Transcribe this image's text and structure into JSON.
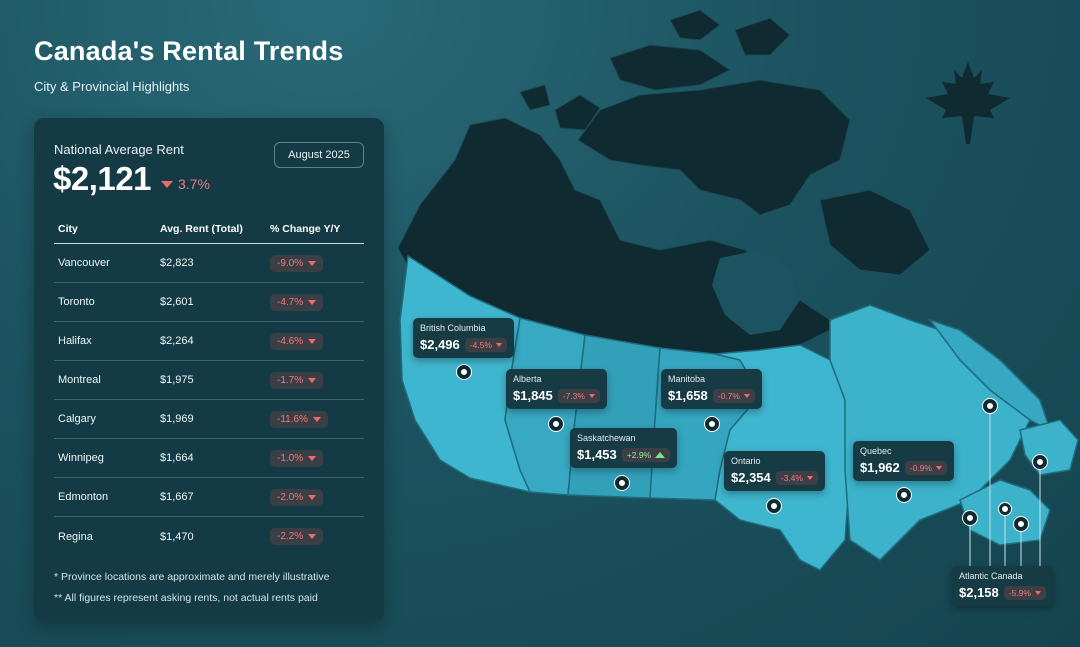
{
  "header": {
    "title": "Canada's Rental Trends",
    "subtitle": "City & Provincial Highlights"
  },
  "national": {
    "label": "National Average Rent",
    "value": "$2,121",
    "change": "3.7%",
    "direction": "down",
    "date": "August 2025"
  },
  "table": {
    "headers": [
      "City",
      "Avg. Rent (Total)",
      "% Change Y/Y"
    ],
    "rows": [
      {
        "city": "Vancouver",
        "rent": "$2,823",
        "change": "-9.0%"
      },
      {
        "city": "Toronto",
        "rent": "$2,601",
        "change": "-4.7%"
      },
      {
        "city": "Halifax",
        "rent": "$2,264",
        "change": "-4.6%"
      },
      {
        "city": "Montreal",
        "rent": "$1,975",
        "change": "-1.7%"
      },
      {
        "city": "Calgary",
        "rent": "$1,969",
        "change": "-11.6%"
      },
      {
        "city": "Winnipeg",
        "rent": "$1,664",
        "change": "-1.0%"
      },
      {
        "city": "Edmonton",
        "rent": "$1,667",
        "change": "-2.0%"
      },
      {
        "city": "Regina",
        "rent": "$1,470",
        "change": "-2.2%"
      }
    ]
  },
  "notes": [
    "* Province locations are approximate and merely illustrative",
    "** All figures represent asking rents, not actual rents paid"
  ],
  "provinces": [
    {
      "name": "British Columbia",
      "value": "$2,496",
      "change": "-4.5%",
      "direction": "down"
    },
    {
      "name": "Alberta",
      "value": "$1,845",
      "change": "-7.3%",
      "direction": "down"
    },
    {
      "name": "Saskatchewan",
      "value": "$1,453",
      "change": "+2.9%",
      "direction": "up"
    },
    {
      "name": "Manitoba",
      "value": "$1,658",
      "change": "-0.7%",
      "direction": "down"
    },
    {
      "name": "Ontario",
      "value": "$2,354",
      "change": "-3.4%",
      "direction": "down"
    },
    {
      "name": "Quebec",
      "value": "$1,962",
      "change": "-0.9%",
      "direction": "down"
    },
    {
      "name": "Atlantic Canada",
      "value": "$2,158",
      "change": "-5.9%",
      "direction": "down"
    }
  ],
  "colors": {
    "background": "#1c5360",
    "panel": "#143b45",
    "north": "#0f2a31",
    "province_light": "#3fb6cf",
    "province_mid": "#35a3bd",
    "negative": "#f07a7a",
    "positive": "#9be6a4"
  },
  "icons": [
    "maple-leaf-icon",
    "map-pin-icon",
    "triangle-down-icon",
    "triangle-up-icon"
  ]
}
